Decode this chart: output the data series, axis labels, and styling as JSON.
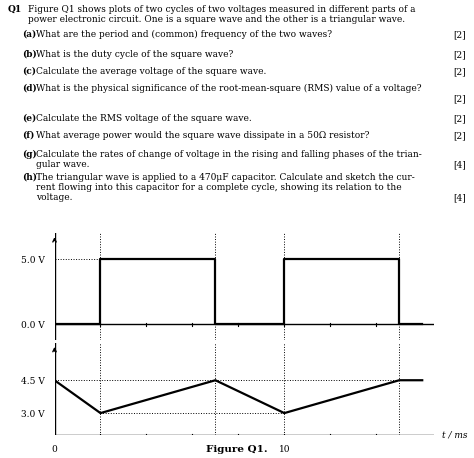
{
  "square_wave": {
    "t": [
      0,
      0,
      2,
      2,
      7,
      7,
      10,
      10,
      15,
      15,
      16
    ],
    "v": [
      0,
      0,
      0,
      5,
      5,
      0,
      0,
      5,
      5,
      0,
      0
    ],
    "color": "black",
    "linewidth": 1.6,
    "yticks": [
      0.0,
      5.0
    ],
    "yticklabels": [
      "0.0 V",
      "5.0 V"
    ],
    "ylim": [
      -1.2,
      7.0
    ]
  },
  "triangle_wave": {
    "t": [
      0,
      2,
      7,
      10,
      15,
      16
    ],
    "v": [
      4.5,
      3.0,
      4.5,
      3.0,
      4.5,
      4.5
    ],
    "color": "black",
    "linewidth": 1.6,
    "yticks": [
      3.0,
      4.5
    ],
    "yticklabels": [
      "3.0 V",
      "4.5 V"
    ],
    "ylim": [
      2.0,
      6.2
    ]
  },
  "xlim": [
    0,
    16.5
  ],
  "xticks": [
    0,
    10
  ],
  "xlabel": "t / ms",
  "figure_label": "Figure Q1.",
  "dotted_t": [
    2,
    7,
    10,
    15
  ],
  "sq_dotted_xmax": 0.115
}
